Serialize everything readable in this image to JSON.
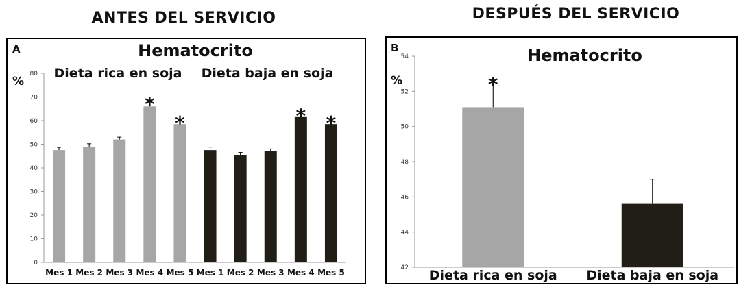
{
  "headings": {
    "before": "ANTES DEL SERVICIO",
    "after": "DESPUÉS DEL SERVICIO"
  },
  "colors": {
    "rich": "#a6a6a6",
    "low": "#211e15",
    "axis": "#999999",
    "frame": "#000000"
  },
  "chart_data": [
    {
      "type": "bar",
      "panel": "A",
      "title": "Hematocrito",
      "ylabel": "%",
      "ylim": [
        0,
        80
      ],
      "yticks": [
        0,
        10,
        20,
        30,
        40,
        50,
        60,
        70,
        80
      ],
      "groups": [
        "Dieta rica en soja",
        "Dieta baja en soja"
      ],
      "categories": [
        "Mes 1",
        "Mes 2",
        "Mes 3",
        "Mes 4",
        "Mes 5"
      ],
      "series": [
        {
          "name": "Dieta rica en soja",
          "values": [
            47.5,
            49,
            52,
            66,
            58.5
          ],
          "errors": [
            1.2,
            1.2,
            1,
            2,
            1.5
          ],
          "significant": [
            false,
            false,
            false,
            true,
            true
          ]
        },
        {
          "name": "Dieta baja en soja",
          "values": [
            47.5,
            45.5,
            47,
            61.5,
            58.5
          ],
          "errors": [
            1.3,
            1,
            1,
            1.5,
            1.5
          ],
          "significant": [
            false,
            false,
            false,
            true,
            true
          ]
        }
      ]
    },
    {
      "type": "bar",
      "panel": "B",
      "title": "Hematocrito",
      "ylabel": "%",
      "ylim": [
        42,
        54
      ],
      "yticks": [
        42,
        44,
        46,
        48,
        50,
        52,
        54
      ],
      "categories": [
        "Dieta rica en soja",
        "Dieta baja en soja"
      ],
      "values": [
        51.1,
        45.6
      ],
      "errors": [
        1.4,
        1.4
      ],
      "significant": [
        true,
        false
      ]
    }
  ]
}
